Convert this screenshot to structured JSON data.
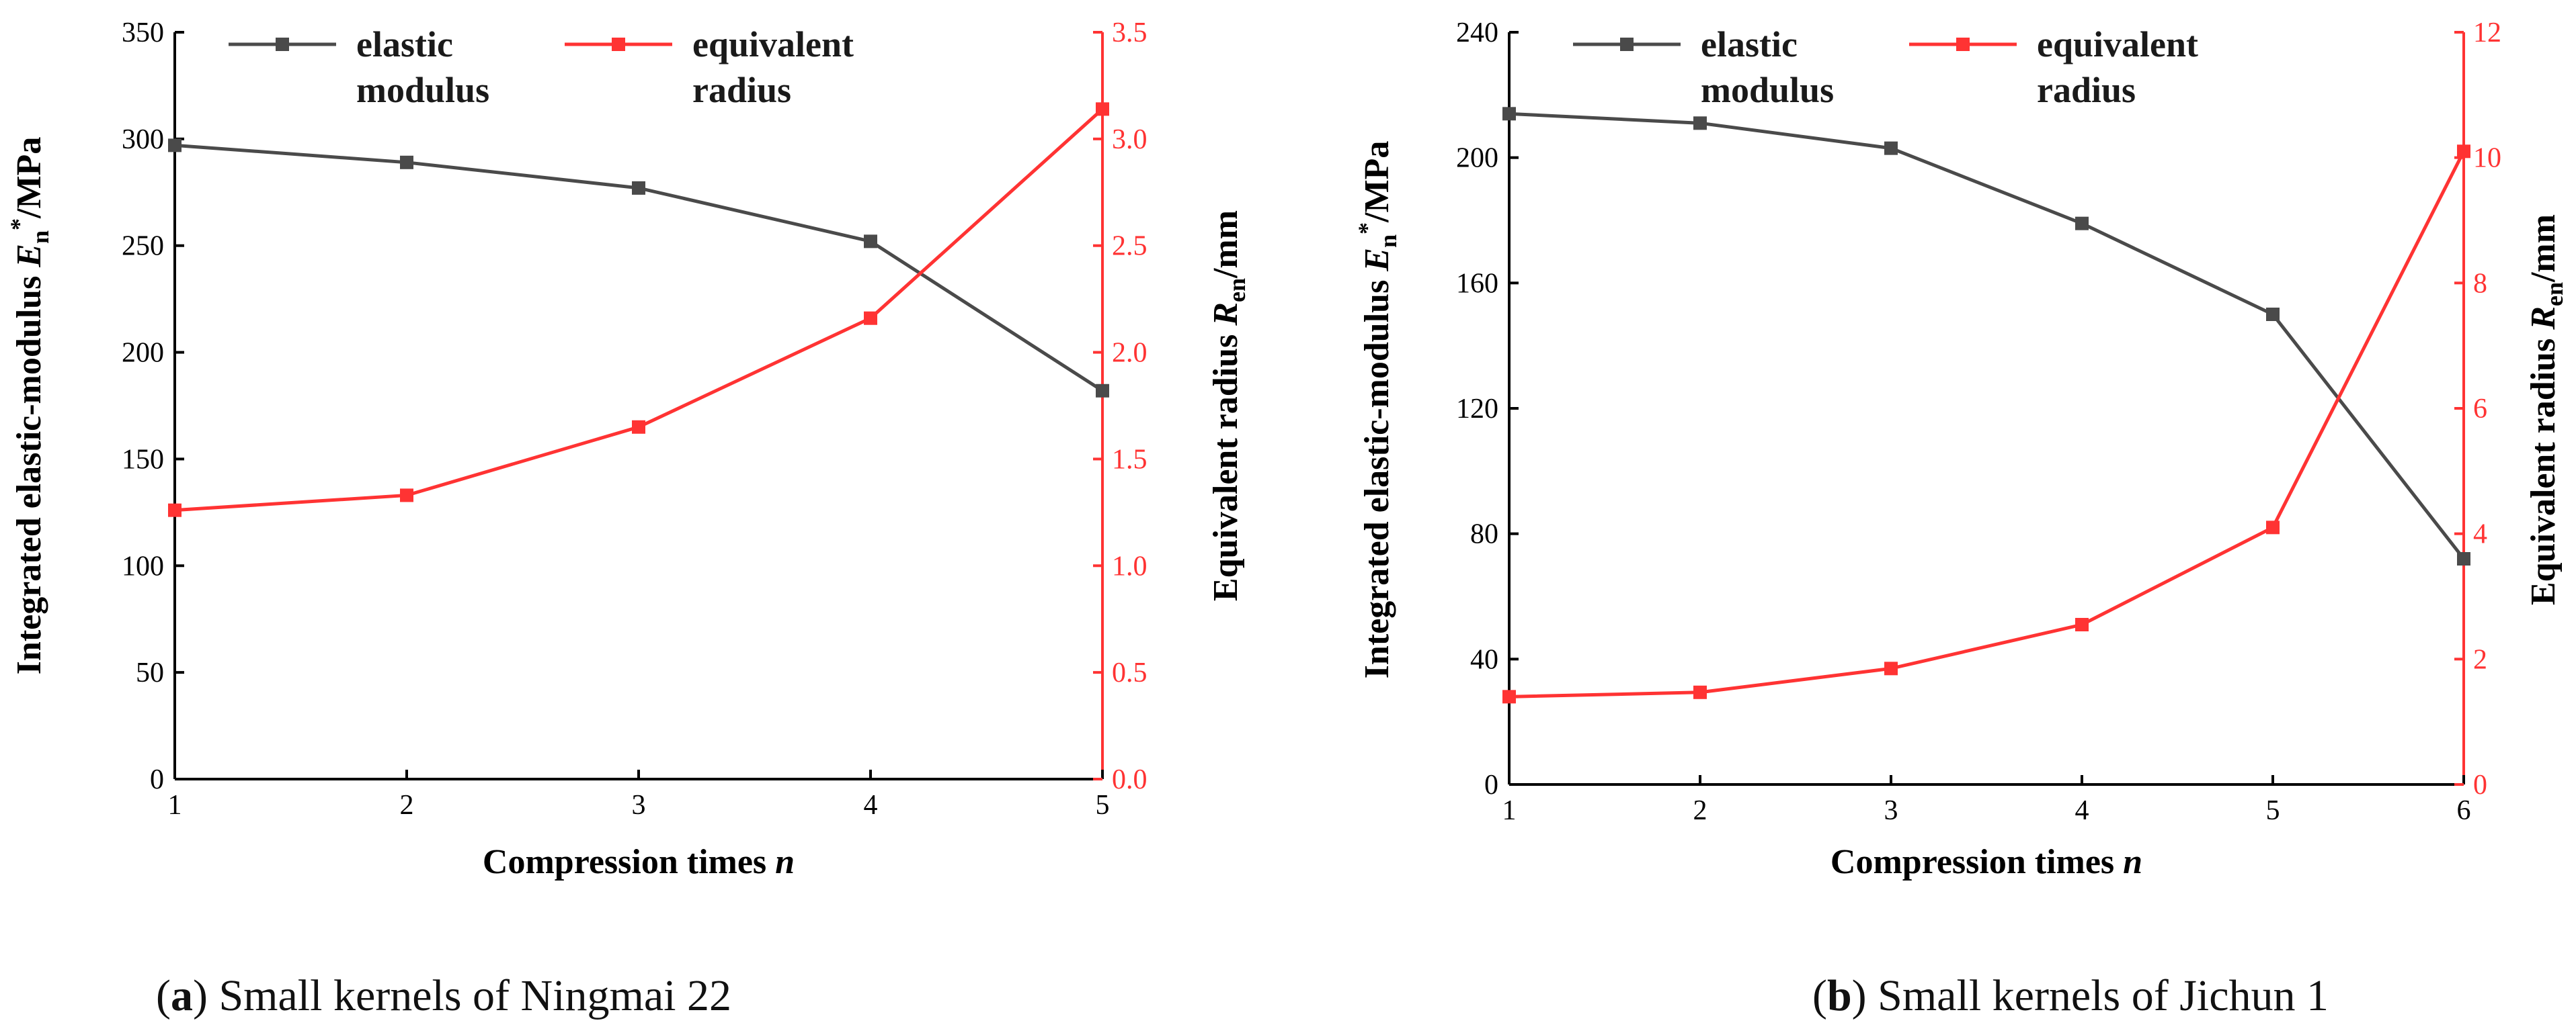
{
  "colors": {
    "elastic": "#4a4a4a",
    "radius": "#ff3333",
    "axis": "#000000"
  },
  "chart_data": [
    {
      "type": "line",
      "caption": {
        "letter": "a",
        "text": "Small kernels of Ningmai 22"
      },
      "xlabel": {
        "text": "Compression times ",
        "var": "n"
      },
      "ylabel_left": {
        "text": "Integrated elastic-modulus ",
        "sym": "E",
        "sub": "n",
        "sup": "*",
        "unit": "/MPa"
      },
      "ylabel_right": {
        "text": "Equivalent radius ",
        "sym": "R",
        "sub": "en",
        "unit": "/mm"
      },
      "xlim": [
        1,
        5
      ],
      "xticks": [
        "1",
        "2",
        "3",
        "4",
        "5"
      ],
      "ylim_left": [
        0,
        350
      ],
      "yticks_left": [
        "0",
        "50",
        "100",
        "150",
        "200",
        "250",
        "300",
        "350"
      ],
      "ylim_right": [
        0,
        3.5
      ],
      "yticks_right": [
        "0.0",
        "0.5",
        "1.0",
        "1.5",
        "2.0",
        "2.5",
        "3.0",
        "3.5"
      ],
      "legend": [
        {
          "line1": "elastic",
          "line2": "modulus"
        },
        {
          "line1": "equivalent",
          "line2": "radius"
        }
      ],
      "series": [
        {
          "name": "elastic modulus",
          "axis": "left",
          "x": [
            1,
            2,
            3,
            4,
            5
          ],
          "values": [
            297,
            289,
            277,
            252,
            182
          ]
        },
        {
          "name": "equivalent radius",
          "axis": "right",
          "x": [
            1,
            2,
            3,
            4,
            5
          ],
          "values": [
            1.26,
            1.33,
            1.65,
            2.16,
            3.14
          ]
        }
      ]
    },
    {
      "type": "line",
      "caption": {
        "letter": "b",
        "text": "Small kernels of Jichun 1"
      },
      "xlabel": {
        "text": "Compression times ",
        "var": "n"
      },
      "ylabel_left": {
        "text": "Integrated elastic-modulus ",
        "sym": "E",
        "sub": "n",
        "sup": "*",
        "unit": "/MPa"
      },
      "ylabel_right": {
        "text": "Equivalent radius ",
        "sym": "R",
        "sub": "en",
        "unit": "/mm"
      },
      "xlim": [
        1,
        6
      ],
      "xticks": [
        "1",
        "2",
        "3",
        "4",
        "5",
        "6"
      ],
      "ylim_left": [
        0,
        240
      ],
      "yticks_left": [
        "0",
        "40",
        "80",
        "120",
        "160",
        "200",
        "240"
      ],
      "ylim_right": [
        0,
        12
      ],
      "yticks_right": [
        "0",
        "2",
        "4",
        "6",
        "8",
        "10",
        "12"
      ],
      "legend": [
        {
          "line1": "elastic",
          "line2": "modulus"
        },
        {
          "line1": "equivalent",
          "line2": "radius"
        }
      ],
      "series": [
        {
          "name": "elastic modulus",
          "axis": "left",
          "x": [
            1,
            2,
            3,
            4,
            5,
            6
          ],
          "values": [
            214,
            211,
            203,
            179,
            150,
            72
          ]
        },
        {
          "name": "equivalent radius",
          "axis": "right",
          "x": [
            1,
            2,
            3,
            4,
            5,
            6
          ],
          "values": [
            1.4,
            1.47,
            1.85,
            2.55,
            4.1,
            10.1
          ]
        }
      ]
    }
  ]
}
